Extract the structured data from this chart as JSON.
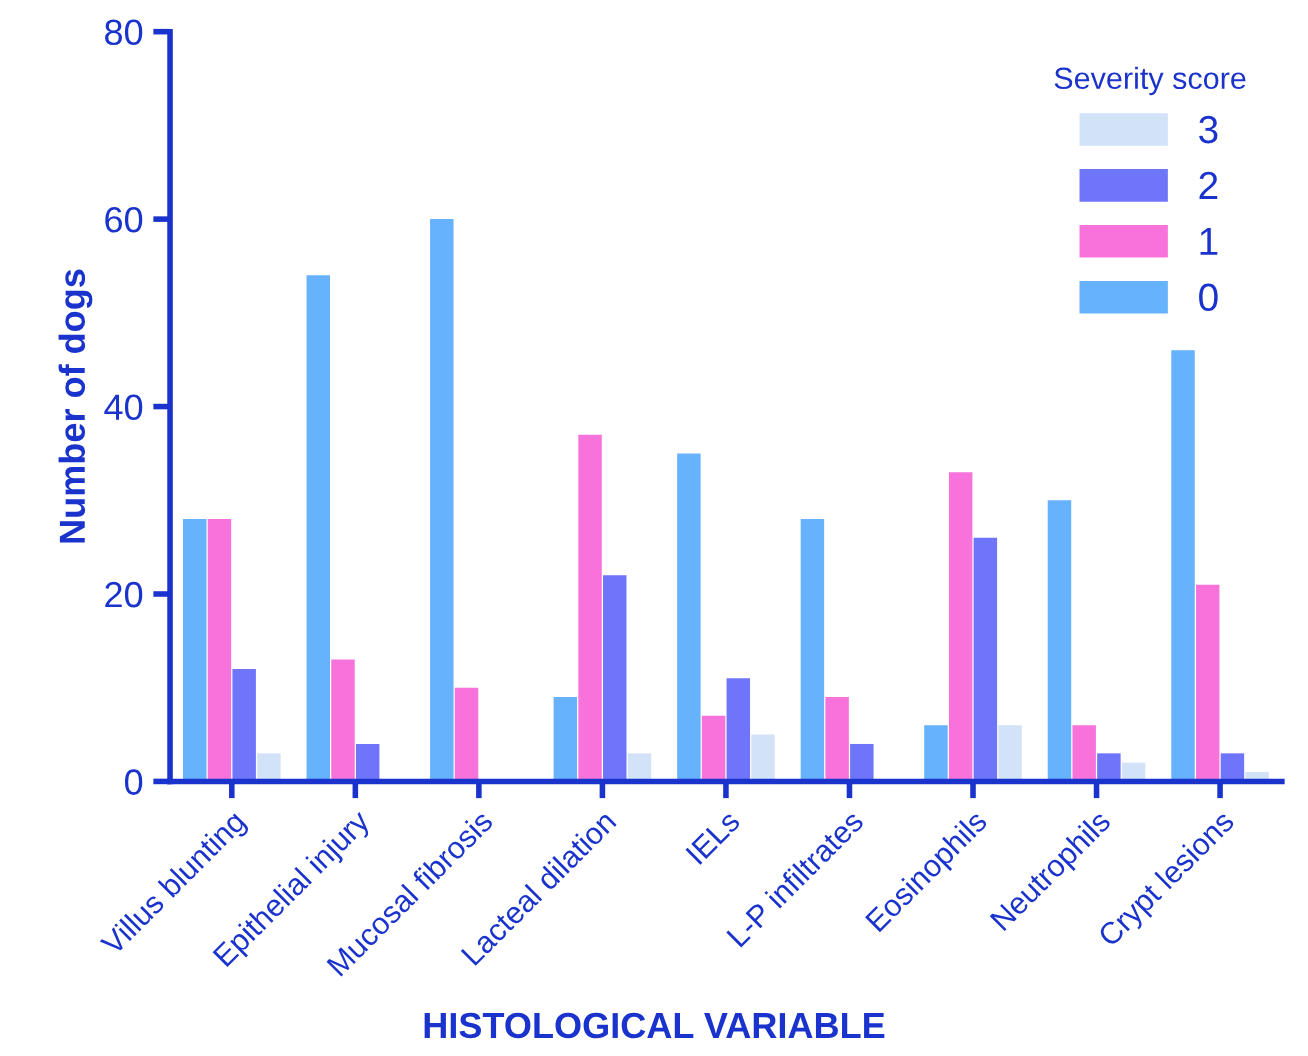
{
  "chart_data": {
    "type": "bar",
    "xlabel": "HISTOLOGICAL VARIABLE",
    "ylabel": "Number of dogs",
    "legend_title": "Severity score",
    "categories": [
      "Villus blunting",
      "Epithelial injury",
      "Mucosal fibrosis",
      "Lacteal dilation",
      "IELs",
      "L-P infiltrates",
      "Eosinophils",
      "Neutrophils",
      "Crypt lesions"
    ],
    "series": [
      {
        "name": "0",
        "color": "#66b2fc",
        "values": [
          28,
          54,
          60,
          9,
          35,
          28,
          6,
          30,
          46
        ]
      },
      {
        "name": "1",
        "color": "#f872dc",
        "values": [
          28,
          13,
          10,
          37,
          7,
          9,
          33,
          6,
          21
        ]
      },
      {
        "name": "2",
        "color": "#6f75f8",
        "values": [
          12,
          4,
          0,
          22,
          11,
          4,
          26,
          3,
          3
        ]
      },
      {
        "name": "3",
        "color": "#d2e3f8",
        "values": [
          3,
          0,
          0,
          3,
          5,
          0,
          6,
          2,
          1
        ]
      }
    ],
    "ylim": [
      0,
      80
    ],
    "yticks": [
      0,
      20,
      40,
      60,
      80
    ],
    "grid": false,
    "legend": "top right"
  }
}
